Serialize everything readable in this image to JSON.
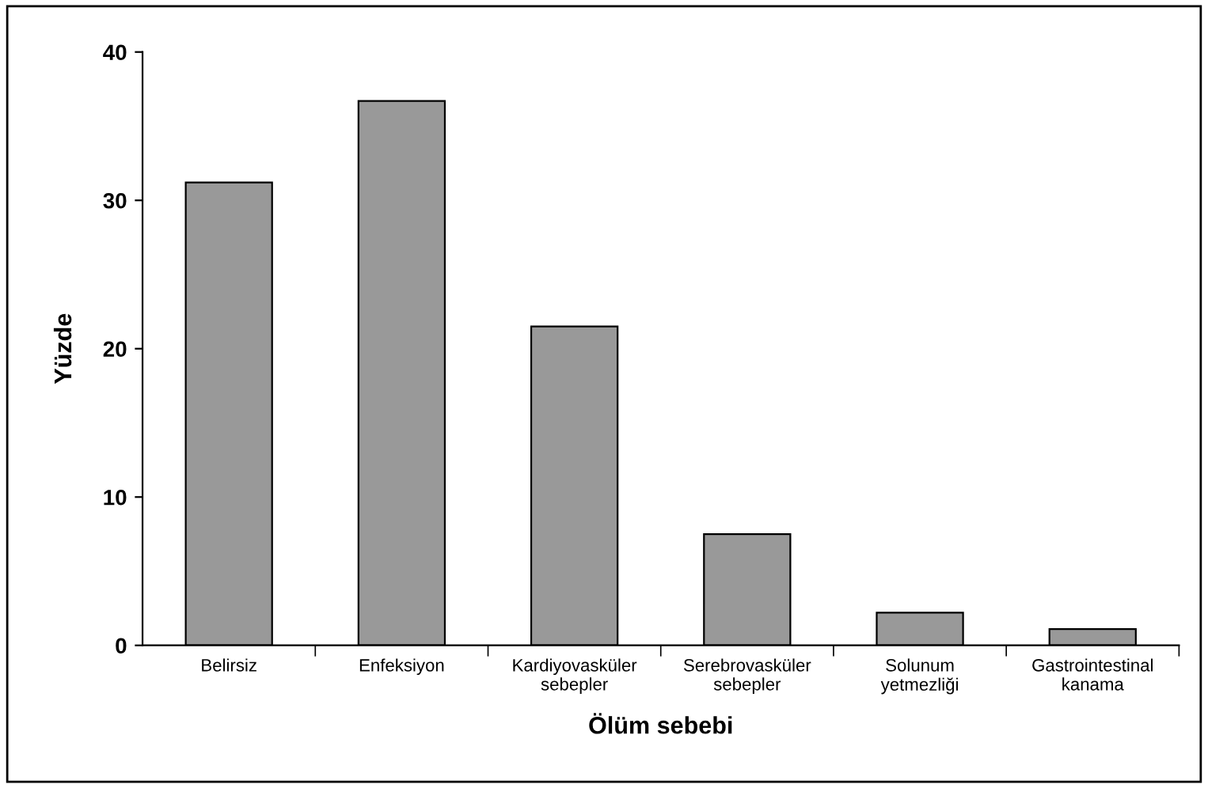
{
  "chart_data": {
    "type": "bar",
    "xlabel": "Ölüm sebebi",
    "ylabel": "Yüzde",
    "categories": [
      "Belirsiz",
      "Enfeksiyon",
      "Kardiyovasküler\nsebepler",
      "Serebrovasküler\nsebepler",
      "Solunum\nyetmezliği",
      "Gastrointestinal\nkanama"
    ],
    "values": [
      31.2,
      36.7,
      21.5,
      7.5,
      2.2,
      1.1
    ],
    "color": "#999999",
    "ylim": [
      0,
      40
    ],
    "yticks": [
      0,
      10,
      20,
      30,
      40
    ],
    "grid": false,
    "legend": false
  }
}
